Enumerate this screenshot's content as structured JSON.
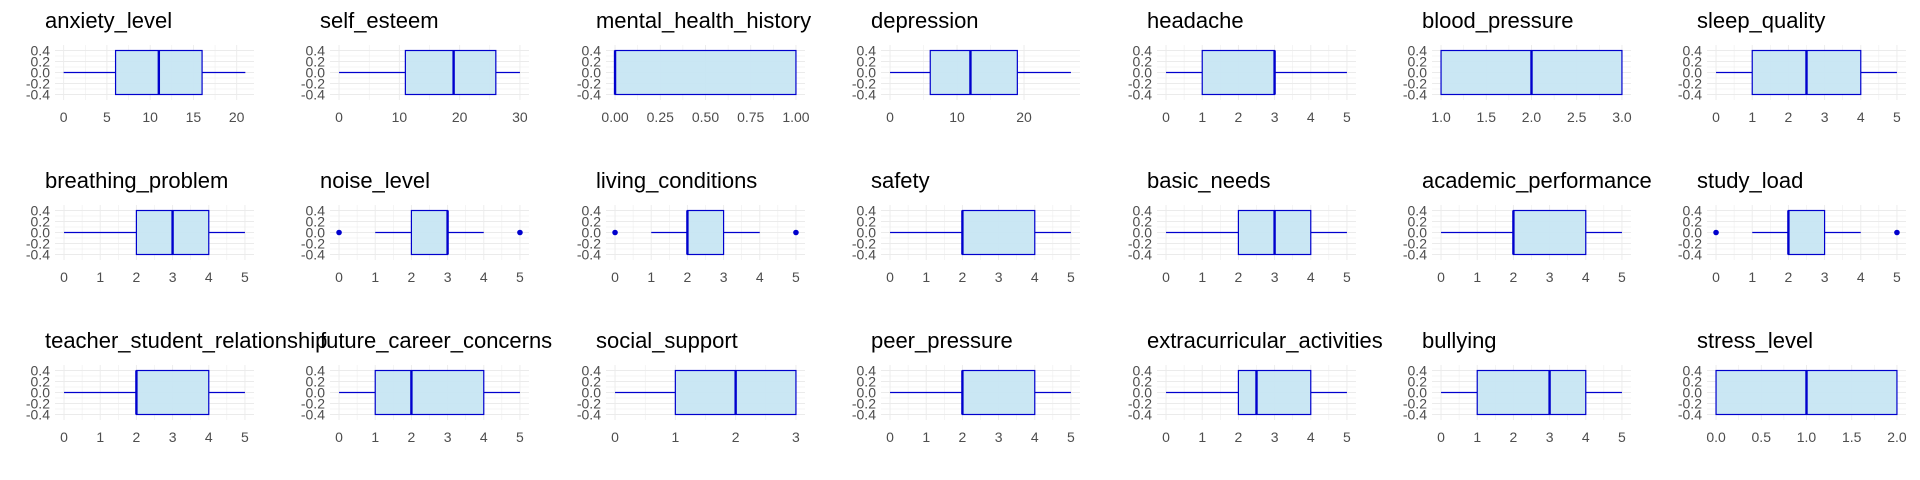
{
  "colors": {
    "box_fill": "#c7e6f3",
    "box_stroke": "#0000cd",
    "grid": "#ebebeb",
    "tick_text": "#4d4d4d",
    "title_text": "#000000"
  },
  "chart_data": [
    {
      "type": "boxplot",
      "title": "anxiety_level",
      "xlim": [
        -1,
        22
      ],
      "xticks": [
        "0",
        "5",
        "10",
        "15",
        "20"
      ],
      "xtick_values": [
        0,
        5,
        10,
        15,
        20
      ],
      "yticks": [
        "0.4",
        "0.2",
        "0.0",
        "-0.2",
        "-0.4"
      ],
      "stats": {
        "min": 0,
        "q1": 6,
        "median": 11,
        "q3": 16,
        "max": 21
      },
      "outliers": []
    },
    {
      "type": "boxplot",
      "title": "self_esteem",
      "xlim": [
        -1.5,
        31.5
      ],
      "xticks": [
        "0",
        "10",
        "20",
        "30"
      ],
      "xtick_values": [
        0,
        10,
        20,
        30
      ],
      "yticks": [
        "0.4",
        "0.2",
        "0.0",
        "-0.2",
        "-0.4"
      ],
      "stats": {
        "min": 0,
        "q1": 11,
        "median": 19,
        "q3": 26,
        "max": 30
      },
      "outliers": []
    },
    {
      "type": "boxplot",
      "title": "mental_health_history",
      "xlim": [
        -0.05,
        1.05
      ],
      "xticks": [
        "0.00",
        "0.25",
        "0.50",
        "0.75",
        "1.00"
      ],
      "xtick_values": [
        0,
        0.25,
        0.5,
        0.75,
        1
      ],
      "yticks": [
        "0.4",
        "0.2",
        "0.0",
        "-0.2",
        "-0.4"
      ],
      "stats": {
        "min": 0,
        "q1": 0,
        "median": 0,
        "q3": 1,
        "max": 1
      },
      "outliers": []
    },
    {
      "type": "boxplot",
      "title": "depression",
      "xlim": [
        -1.35,
        28.35
      ],
      "xticks": [
        "0",
        "10",
        "20"
      ],
      "xtick_values": [
        0,
        10,
        20
      ],
      "yticks": [
        "0.4",
        "0.2",
        "0.0",
        "-0.2",
        "-0.4"
      ],
      "stats": {
        "min": 0,
        "q1": 6,
        "median": 12,
        "q3": 19,
        "max": 27
      },
      "outliers": []
    },
    {
      "type": "boxplot",
      "title": "headache",
      "xlim": [
        -0.25,
        5.25
      ],
      "xticks": [
        "0",
        "1",
        "2",
        "3",
        "4",
        "5"
      ],
      "xtick_values": [
        0,
        1,
        2,
        3,
        4,
        5
      ],
      "yticks": [
        "0.4",
        "0.2",
        "0.0",
        "-0.2",
        "-0.4"
      ],
      "stats": {
        "min": 0,
        "q1": 1,
        "median": 3,
        "q3": 3,
        "max": 5
      },
      "outliers": []
    },
    {
      "type": "boxplot",
      "title": "blood_pressure",
      "xlim": [
        0.9,
        3.1
      ],
      "xticks": [
        "1.0",
        "1.5",
        "2.0",
        "2.5",
        "3.0"
      ],
      "xtick_values": [
        1,
        1.5,
        2,
        2.5,
        3
      ],
      "yticks": [
        "0.4",
        "0.2",
        "0.0",
        "-0.2",
        "-0.4"
      ],
      "stats": {
        "min": 1,
        "q1": 1,
        "median": 2,
        "q3": 3,
        "max": 3
      },
      "outliers": []
    },
    {
      "type": "boxplot",
      "title": "sleep_quality",
      "xlim": [
        -0.25,
        5.25
      ],
      "xticks": [
        "0",
        "1",
        "2",
        "3",
        "4",
        "5"
      ],
      "xtick_values": [
        0,
        1,
        2,
        3,
        4,
        5
      ],
      "yticks": [
        "0.4",
        "0.2",
        "0.0",
        "-0.2",
        "-0.4"
      ],
      "stats": {
        "min": 0,
        "q1": 1,
        "median": 2.5,
        "q3": 4,
        "max": 5
      },
      "outliers": []
    },
    {
      "type": "boxplot",
      "title": "breathing_problem",
      "xlim": [
        -0.25,
        5.25
      ],
      "xticks": [
        "0",
        "1",
        "2",
        "3",
        "4",
        "5"
      ],
      "xtick_values": [
        0,
        1,
        2,
        3,
        4,
        5
      ],
      "yticks": [
        "0.4",
        "0.2",
        "0.0",
        "-0.2",
        "-0.4"
      ],
      "stats": {
        "min": 0,
        "q1": 2,
        "median": 3,
        "q3": 4,
        "max": 5
      },
      "outliers": []
    },
    {
      "type": "boxplot",
      "title": "noise_level",
      "xlim": [
        -0.25,
        5.25
      ],
      "xticks": [
        "0",
        "1",
        "2",
        "3",
        "4",
        "5"
      ],
      "xtick_values": [
        0,
        1,
        2,
        3,
        4,
        5
      ],
      "yticks": [
        "0.4",
        "0.2",
        "0.0",
        "-0.2",
        "-0.4"
      ],
      "stats": {
        "min": 1,
        "q1": 2,
        "median": 3,
        "q3": 3,
        "max": 4
      },
      "outliers": [
        0,
        5
      ]
    },
    {
      "type": "boxplot",
      "title": "living_conditions",
      "xlim": [
        -0.25,
        5.25
      ],
      "xticks": [
        "0",
        "1",
        "2",
        "3",
        "4",
        "5"
      ],
      "xtick_values": [
        0,
        1,
        2,
        3,
        4,
        5
      ],
      "yticks": [
        "0.4",
        "0.2",
        "0.0",
        "-0.2",
        "-0.4"
      ],
      "stats": {
        "min": 1,
        "q1": 2,
        "median": 2,
        "q3": 3,
        "max": 4
      },
      "outliers": [
        0,
        5
      ]
    },
    {
      "type": "boxplot",
      "title": "safety",
      "xlim": [
        -0.25,
        5.25
      ],
      "xticks": [
        "0",
        "1",
        "2",
        "3",
        "4",
        "5"
      ],
      "xtick_values": [
        0,
        1,
        2,
        3,
        4,
        5
      ],
      "yticks": [
        "0.4",
        "0.2",
        "0.0",
        "-0.2",
        "-0.4"
      ],
      "stats": {
        "min": 0,
        "q1": 2,
        "median": 2,
        "q3": 4,
        "max": 5
      },
      "outliers": []
    },
    {
      "type": "boxplot",
      "title": "basic_needs",
      "xlim": [
        -0.25,
        5.25
      ],
      "xticks": [
        "0",
        "1",
        "2",
        "3",
        "4",
        "5"
      ],
      "xtick_values": [
        0,
        1,
        2,
        3,
        4,
        5
      ],
      "yticks": [
        "0.4",
        "0.2",
        "0.0",
        "-0.2",
        "-0.4"
      ],
      "stats": {
        "min": 0,
        "q1": 2,
        "median": 3,
        "q3": 4,
        "max": 5
      },
      "outliers": []
    },
    {
      "type": "boxplot",
      "title": "academic_performance",
      "xlim": [
        -0.25,
        5.25
      ],
      "xticks": [
        "0",
        "1",
        "2",
        "3",
        "4",
        "5"
      ],
      "xtick_values": [
        0,
        1,
        2,
        3,
        4,
        5
      ],
      "yticks": [
        "0.4",
        "0.2",
        "0.0",
        "-0.2",
        "-0.4"
      ],
      "stats": {
        "min": 0,
        "q1": 2,
        "median": 2,
        "q3": 4,
        "max": 5
      },
      "outliers": []
    },
    {
      "type": "boxplot",
      "title": "study_load",
      "xlim": [
        -0.25,
        5.25
      ],
      "xticks": [
        "0",
        "1",
        "2",
        "3",
        "4",
        "5"
      ],
      "xtick_values": [
        0,
        1,
        2,
        3,
        4,
        5
      ],
      "yticks": [
        "0.4",
        "0.2",
        "0.0",
        "-0.2",
        "-0.4"
      ],
      "stats": {
        "min": 1,
        "q1": 2,
        "median": 2,
        "q3": 3,
        "max": 4
      },
      "outliers": [
        0,
        5
      ]
    },
    {
      "type": "boxplot",
      "title": "teacher_student_relationship",
      "xlim": [
        -0.25,
        5.25
      ],
      "xticks": [
        "0",
        "1",
        "2",
        "3",
        "4",
        "5"
      ],
      "xtick_values": [
        0,
        1,
        2,
        3,
        4,
        5
      ],
      "yticks": [
        "0.4",
        "0.2",
        "0.0",
        "-0.2",
        "-0.4"
      ],
      "stats": {
        "min": 0,
        "q1": 2,
        "median": 2,
        "q3": 4,
        "max": 5
      },
      "outliers": []
    },
    {
      "type": "boxplot",
      "title": "future_career_concerns",
      "xlim": [
        -0.25,
        5.25
      ],
      "xticks": [
        "0",
        "1",
        "2",
        "3",
        "4",
        "5"
      ],
      "xtick_values": [
        0,
        1,
        2,
        3,
        4,
        5
      ],
      "yticks": [
        "0.4",
        "0.2",
        "0.0",
        "-0.2",
        "-0.4"
      ],
      "stats": {
        "min": 0,
        "q1": 1,
        "median": 2,
        "q3": 4,
        "max": 5
      },
      "outliers": []
    },
    {
      "type": "boxplot",
      "title": "social_support",
      "xlim": [
        -0.15,
        3.15
      ],
      "xticks": [
        "0",
        "1",
        "2",
        "3"
      ],
      "xtick_values": [
        0,
        1,
        2,
        3
      ],
      "yticks": [
        "0.4",
        "0.2",
        "0.0",
        "-0.2",
        "-0.4"
      ],
      "stats": {
        "min": 0,
        "q1": 1,
        "median": 2,
        "q3": 3,
        "max": 3
      },
      "outliers": []
    },
    {
      "type": "boxplot",
      "title": "peer_pressure",
      "xlim": [
        -0.25,
        5.25
      ],
      "xticks": [
        "0",
        "1",
        "2",
        "3",
        "4",
        "5"
      ],
      "xtick_values": [
        0,
        1,
        2,
        3,
        4,
        5
      ],
      "yticks": [
        "0.4",
        "0.2",
        "0.0",
        "-0.2",
        "-0.4"
      ],
      "stats": {
        "min": 0,
        "q1": 2,
        "median": 2,
        "q3": 4,
        "max": 5
      },
      "outliers": []
    },
    {
      "type": "boxplot",
      "title": "extracurricular_activities",
      "xlim": [
        -0.25,
        5.25
      ],
      "xticks": [
        "0",
        "1",
        "2",
        "3",
        "4",
        "5"
      ],
      "xtick_values": [
        0,
        1,
        2,
        3,
        4,
        5
      ],
      "yticks": [
        "0.4",
        "0.2",
        "0.0",
        "-0.2",
        "-0.4"
      ],
      "stats": {
        "min": 0,
        "q1": 2,
        "median": 2.5,
        "q3": 4,
        "max": 5
      },
      "outliers": []
    },
    {
      "type": "boxplot",
      "title": "bullying",
      "xlim": [
        -0.25,
        5.25
      ],
      "xticks": [
        "0",
        "1",
        "2",
        "3",
        "4",
        "5"
      ],
      "xtick_values": [
        0,
        1,
        2,
        3,
        4,
        5
      ],
      "yticks": [
        "0.4",
        "0.2",
        "0.0",
        "-0.2",
        "-0.4"
      ],
      "stats": {
        "min": 0,
        "q1": 1,
        "median": 3,
        "q3": 4,
        "max": 5
      },
      "outliers": []
    },
    {
      "type": "boxplot",
      "title": "stress_level",
      "xlim": [
        -0.1,
        2.1
      ],
      "xticks": [
        "0.0",
        "0.5",
        "1.0",
        "1.5",
        "2.0"
      ],
      "xtick_values": [
        0,
        0.5,
        1,
        1.5,
        2
      ],
      "yticks": [
        "0.4",
        "0.2",
        "0.0",
        "-0.2",
        "-0.4"
      ],
      "stats": {
        "min": 0,
        "q1": 0,
        "median": 1,
        "q3": 2,
        "max": 2
      },
      "outliers": []
    }
  ]
}
